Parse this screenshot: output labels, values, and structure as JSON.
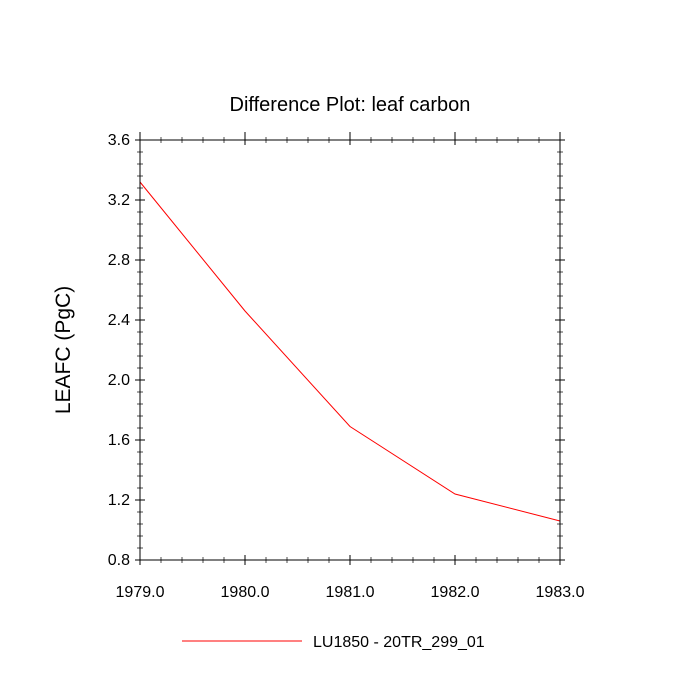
{
  "chart_data": {
    "type": "line",
    "title": "Difference Plot: leaf carbon",
    "xlabel": "",
    "ylabel": "LEAFC  (PgC)",
    "xlim": [
      1979.0,
      1983.0
    ],
    "ylim": [
      0.8,
      3.6
    ],
    "x_ticks": [
      "1979.0",
      "1980.0",
      "1981.0",
      "1982.0",
      "1983.0"
    ],
    "y_ticks": [
      "0.8",
      "1.2",
      "1.6",
      "2.0",
      "2.4",
      "2.8",
      "3.2",
      "3.6"
    ],
    "grid": false,
    "legend_position": "bottom",
    "series": [
      {
        "name": "LU1850 - 20TR_299_01",
        "color": "#ff0000",
        "x": [
          1979.0,
          1980.0,
          1981.0,
          1982.0,
          1983.0
        ],
        "y": [
          3.32,
          2.46,
          1.69,
          1.24,
          1.06
        ]
      }
    ]
  }
}
